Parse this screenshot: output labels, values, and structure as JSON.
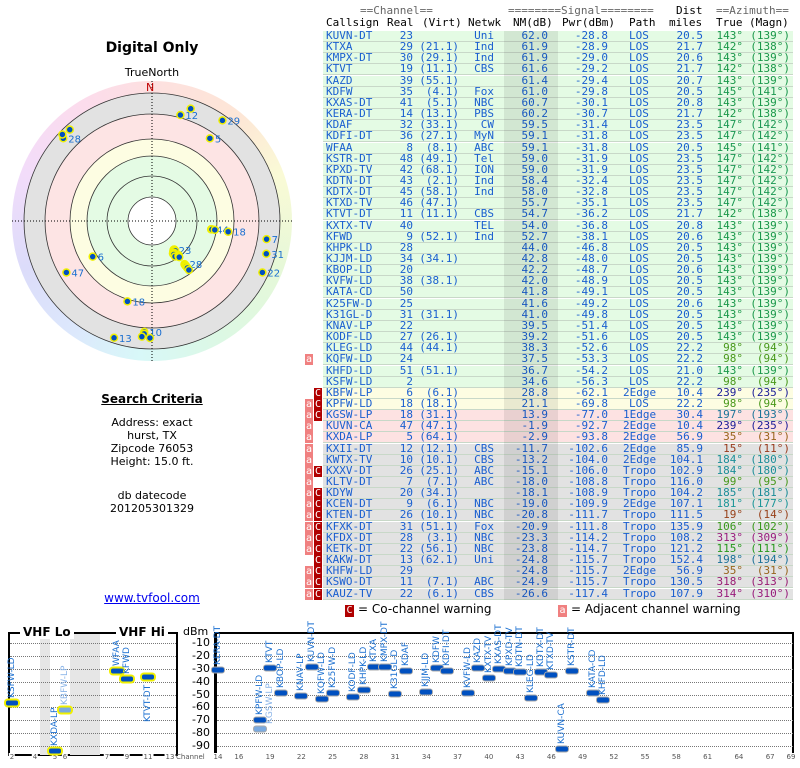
{
  "left": {
    "title": "Digital Only",
    "true_north": "TrueNorth",
    "north": "N",
    "criteria_title": "Search Criteria",
    "address": "Address: exact",
    "city": "hurst, TX",
    "zipcode": "Zipcode 76053",
    "height": "Height: 15.0 ft.",
    "db_label": "db datecode",
    "db_value": "201205301329",
    "link": "www.tvfool.com"
  },
  "header": {
    "channel": "==Channel==",
    "signal": "========Signal========",
    "dist": "Dist",
    "azimuth": "==Azimuth==",
    "callsign": "Callsign",
    "real": "Real",
    "virt": "(Virt)",
    "netwk": "Netwk",
    "nm": "NM(dB)",
    "pwr": "Pwr(dBm)",
    "path": "Path",
    "miles": "miles",
    "true": "True",
    "magn": "(Magn)"
  },
  "colors": {
    "green_row": "#e4fbe4",
    "yellow_row": "#fdfde2",
    "red_row": "#fde2e2",
    "gray_row": "#e2e2e2",
    "text": "#1a5fd0",
    "adjacent": "#f08080",
    "cochannel": "#b00000"
  },
  "rows": [
    {
      "call": "KUVN-DT",
      "real": "23",
      "virt": "",
      "net": "Uni",
      "nm": "62.0",
      "pwr": "-28.8",
      "path": "LOS",
      "dist": "20.5",
      "az": "143°",
      "magn": "(139°)",
      "warn": "",
      "band": "g"
    },
    {
      "call": "KTXA",
      "real": "29",
      "virt": "(21.1)",
      "net": "Ind",
      "nm": "61.9",
      "pwr": "-28.9",
      "path": "LOS",
      "dist": "21.7",
      "az": "142°",
      "magn": "(138°)",
      "warn": "",
      "band": "g"
    },
    {
      "call": "KMPX-DT",
      "real": "30",
      "virt": "(29.1)",
      "net": "Ind",
      "nm": "61.9",
      "pwr": "-29.0",
      "path": "LOS",
      "dist": "20.6",
      "az": "143°",
      "magn": "(139°)",
      "warn": "",
      "band": "g"
    },
    {
      "call": "KTVT",
      "real": "19",
      "virt": "(11.1)",
      "net": "CBS",
      "nm": "61.6",
      "pwr": "-29.2",
      "path": "LOS",
      "dist": "21.7",
      "az": "142°",
      "magn": "(138°)",
      "warn": "",
      "band": "g"
    },
    {
      "call": "KAZD",
      "real": "39",
      "virt": "(55.1)",
      "net": "",
      "nm": "61.4",
      "pwr": "-29.4",
      "path": "LOS",
      "dist": "20.7",
      "az": "143°",
      "magn": "(139°)",
      "warn": "",
      "band": "g"
    },
    {
      "call": "KDFW",
      "real": "35",
      "virt": "(4.1)",
      "net": "Fox",
      "nm": "61.0",
      "pwr": "-29.8",
      "path": "LOS",
      "dist": "20.5",
      "az": "145°",
      "magn": "(141°)",
      "warn": "",
      "band": "g"
    },
    {
      "call": "KXAS-DT",
      "real": "41",
      "virt": "(5.1)",
      "net": "NBC",
      "nm": "60.7",
      "pwr": "-30.1",
      "path": "LOS",
      "dist": "20.8",
      "az": "143°",
      "magn": "(139°)",
      "warn": "",
      "band": "g"
    },
    {
      "call": "KERA-DT",
      "real": "14",
      "virt": "(13.1)",
      "net": "PBS",
      "nm": "60.2",
      "pwr": "-30.7",
      "path": "LOS",
      "dist": "21.7",
      "az": "142°",
      "magn": "(138°)",
      "warn": "",
      "band": "g"
    },
    {
      "call": "KDAF",
      "real": "32",
      "virt": "(33.1)",
      "net": "CW",
      "nm": "59.5",
      "pwr": "-31.4",
      "path": "LOS",
      "dist": "23.5",
      "az": "147°",
      "magn": "(142°)",
      "warn": "",
      "band": "g"
    },
    {
      "call": "KDFI-DT",
      "real": "36",
      "virt": "(27.1)",
      "net": "MyN",
      "nm": "59.1",
      "pwr": "-31.8",
      "path": "LOS",
      "dist": "23.5",
      "az": "147°",
      "magn": "(142°)",
      "warn": "",
      "band": "g"
    },
    {
      "call": "WFAA",
      "real": "8",
      "virt": "(8.1)",
      "net": "ABC",
      "nm": "59.1",
      "pwr": "-31.8",
      "path": "LOS",
      "dist": "20.5",
      "az": "145°",
      "magn": "(141°)",
      "warn": "",
      "band": "g"
    },
    {
      "call": "KSTR-DT",
      "real": "48",
      "virt": "(49.1)",
      "net": "Tel",
      "nm": "59.0",
      "pwr": "-31.9",
      "path": "LOS",
      "dist": "23.5",
      "az": "147°",
      "magn": "(142°)",
      "warn": "",
      "band": "g"
    },
    {
      "call": "KPXD-TV",
      "real": "42",
      "virt": "(68.1)",
      "net": "ION",
      "nm": "59.0",
      "pwr": "-31.9",
      "path": "LOS",
      "dist": "23.5",
      "az": "147°",
      "magn": "(142°)",
      "warn": "",
      "band": "g"
    },
    {
      "call": "KDTN-DT",
      "real": "43",
      "virt": "(2.1)",
      "net": "Ind",
      "nm": "58.4",
      "pwr": "-32.4",
      "path": "LOS",
      "dist": "23.5",
      "az": "147°",
      "magn": "(142°)",
      "warn": "",
      "band": "g"
    },
    {
      "call": "KDTX-DT",
      "real": "45",
      "virt": "(58.1)",
      "net": "Ind",
      "nm": "58.0",
      "pwr": "-32.8",
      "path": "LOS",
      "dist": "23.5",
      "az": "147°",
      "magn": "(142°)",
      "warn": "",
      "band": "g"
    },
    {
      "call": "KTXD-TV",
      "real": "46",
      "virt": "(47.1)",
      "net": "",
      "nm": "55.7",
      "pwr": "-35.1",
      "path": "LOS",
      "dist": "23.5",
      "az": "147°",
      "magn": "(142°)",
      "warn": "",
      "band": "g"
    },
    {
      "call": "KTVT-DT",
      "real": "11",
      "virt": "(11.1)",
      "net": "CBS",
      "nm": "54.7",
      "pwr": "-36.2",
      "path": "LOS",
      "dist": "21.7",
      "az": "142°",
      "magn": "(138°)",
      "warn": "",
      "band": "g"
    },
    {
      "call": "KXTX-TV",
      "real": "40",
      "virt": "",
      "net": "TEL",
      "nm": "54.0",
      "pwr": "-36.8",
      "path": "LOS",
      "dist": "20.8",
      "az": "143°",
      "magn": "(139°)",
      "warn": "",
      "band": "g"
    },
    {
      "call": "KFWD",
      "real": "9",
      "virt": "(52.1)",
      "net": "Ind",
      "nm": "52.7",
      "pwr": "-38.1",
      "path": "LOS",
      "dist": "20.6",
      "az": "143°",
      "magn": "(139°)",
      "warn": "",
      "band": "g"
    },
    {
      "call": "KHPK-LD",
      "real": "28",
      "virt": "",
      "net": "",
      "nm": "44.0",
      "pwr": "-46.8",
      "path": "LOS",
      "dist": "20.5",
      "az": "143°",
      "magn": "(139°)",
      "warn": "",
      "band": "g"
    },
    {
      "call": "KJJM-LD",
      "real": "34",
      "virt": "(34.1)",
      "net": "",
      "nm": "42.8",
      "pwr": "-48.0",
      "path": "LOS",
      "dist": "20.5",
      "az": "143°",
      "magn": "(139°)",
      "warn": "",
      "band": "g"
    },
    {
      "call": "KBOP-LD",
      "real": "20",
      "virt": "",
      "net": "",
      "nm": "42.2",
      "pwr": "-48.7",
      "path": "LOS",
      "dist": "20.6",
      "az": "143°",
      "magn": "(139°)",
      "warn": "",
      "band": "g"
    },
    {
      "call": "KVFW-LD",
      "real": "38",
      "virt": "(38.1)",
      "net": "",
      "nm": "42.0",
      "pwr": "-48.9",
      "path": "LOS",
      "dist": "20.5",
      "az": "143°",
      "magn": "(139°)",
      "warn": "",
      "band": "g"
    },
    {
      "call": "KATA-CD",
      "real": "50",
      "virt": "",
      "net": "",
      "nm": "41.8",
      "pwr": "-49.1",
      "path": "LOS",
      "dist": "20.5",
      "az": "143°",
      "magn": "(139°)",
      "warn": "",
      "band": "g"
    },
    {
      "call": "K25FW-D",
      "real": "25",
      "virt": "",
      "net": "",
      "nm": "41.6",
      "pwr": "-49.2",
      "path": "LOS",
      "dist": "20.6",
      "az": "143°",
      "magn": "(139°)",
      "warn": "",
      "band": "g"
    },
    {
      "call": "K31GL-D",
      "real": "31",
      "virt": "(31.1)",
      "net": "",
      "nm": "41.0",
      "pwr": "-49.8",
      "path": "LOS",
      "dist": "20.5",
      "az": "143°",
      "magn": "(139°)",
      "warn": "",
      "band": "g"
    },
    {
      "call": "KNAV-LP",
      "real": "22",
      "virt": "",
      "net": "",
      "nm": "39.5",
      "pwr": "-51.4",
      "path": "LOS",
      "dist": "20.5",
      "az": "143°",
      "magn": "(139°)",
      "warn": "",
      "band": "g"
    },
    {
      "call": "KODF-LD",
      "real": "27",
      "virt": "(26.1)",
      "net": "",
      "nm": "39.2",
      "pwr": "-51.6",
      "path": "LOS",
      "dist": "20.5",
      "az": "143°",
      "magn": "(139°)",
      "warn": "",
      "band": "g"
    },
    {
      "call": "KLEG-LD",
      "real": "44",
      "virt": "(44.1)",
      "net": "",
      "nm": "38.3",
      "pwr": "-52.6",
      "path": "LOS",
      "dist": "22.2",
      "az": "98°",
      "magn": "(94°)",
      "warn": "",
      "band": "g"
    },
    {
      "call": "KQFW-LD",
      "real": "24",
      "virt": "",
      "net": "",
      "nm": "37.5",
      "pwr": "-53.3",
      "path": "LOS",
      "dist": "22.2",
      "az": "98°",
      "magn": "(94°)",
      "warn": "a",
      "band": "g"
    },
    {
      "call": "KHFD-LD",
      "real": "51",
      "virt": "(51.1)",
      "net": "",
      "nm": "36.7",
      "pwr": "-54.2",
      "path": "LOS",
      "dist": "21.0",
      "az": "143°",
      "magn": "(139°)",
      "warn": "",
      "band": "g"
    },
    {
      "call": "KSFW-LD",
      "real": "2",
      "virt": "",
      "net": "",
      "nm": "34.6",
      "pwr": "-56.3",
      "path": "LOS",
      "dist": "22.2",
      "az": "98°",
      "magn": "(94°)",
      "warn": "",
      "band": "g"
    },
    {
      "call": "KBFW-LP",
      "real": "6",
      "virt": "(6.1)",
      "net": "",
      "nm": "28.8",
      "pwr": "-62.1",
      "path": "2Edge",
      "dist": "10.4",
      "az": "239°",
      "magn": "(235°)",
      "warn": "C",
      "band": "y"
    },
    {
      "call": "KPFW-LD",
      "real": "18",
      "virt": "(18.1)",
      "net": "",
      "nm": "21.1",
      "pwr": "-69.8",
      "path": "LOS",
      "dist": "22.2",
      "az": "98°",
      "magn": "(94°)",
      "warn": "aC",
      "band": "y"
    },
    {
      "call": "KGSW-LP",
      "real": "18",
      "virt": "(31.1)",
      "net": "",
      "nm": "13.9",
      "pwr": "-77.0",
      "path": "1Edge",
      "dist": "30.4",
      "az": "197°",
      "magn": "(193°)",
      "warn": "aC",
      "band": "r"
    },
    {
      "call": "KUVN-CA",
      "real": "47",
      "virt": "(47.1)",
      "net": "",
      "nm": "-1.9",
      "pwr": "-92.7",
      "path": "2Edge",
      "dist": "10.4",
      "az": "239°",
      "magn": "(235°)",
      "warn": "a",
      "band": "r"
    },
    {
      "call": "KXDA-LP",
      "real": "5",
      "virt": "(64.1)",
      "net": "",
      "nm": "-2.9",
      "pwr": "-93.8",
      "path": "2Edge",
      "dist": "56.9",
      "az": "35°",
      "magn": "(31°)",
      "warn": "a",
      "band": "r"
    },
    {
      "call": "KXII-DT",
      "real": "12",
      "virt": "(12.1)",
      "net": "CBS",
      "nm": "-11.7",
      "pwr": "-102.6",
      "path": "2Edge",
      "dist": "85.9",
      "az": "15°",
      "magn": "(11°)",
      "warn": "a",
      "band": "x"
    },
    {
      "call": "KWTX-TV",
      "real": "10",
      "virt": "(10.1)",
      "net": "CBS",
      "nm": "-13.2",
      "pwr": "-104.0",
      "path": "2Edge",
      "dist": "104.1",
      "az": "184°",
      "magn": "(180°)",
      "warn": "a",
      "band": "x"
    },
    {
      "call": "KXXV-DT",
      "real": "26",
      "virt": "(25.1)",
      "net": "ABC",
      "nm": "-15.1",
      "pwr": "-106.0",
      "path": "Tropo",
      "dist": "102.9",
      "az": "184°",
      "magn": "(180°)",
      "warn": "aC",
      "band": "x"
    },
    {
      "call": "KLTV-DT",
      "real": "7",
      "virt": "(7.1)",
      "net": "ABC",
      "nm": "-18.0",
      "pwr": "-108.8",
      "path": "Tropo",
      "dist": "116.0",
      "az": "99°",
      "magn": "(95°)",
      "warn": "a",
      "band": "x"
    },
    {
      "call": "KDYW",
      "real": "20",
      "virt": "(34.1)",
      "net": "",
      "nm": "-18.1",
      "pwr": "-108.9",
      "path": "Tropo",
      "dist": "104.2",
      "az": "185°",
      "magn": "(181°)",
      "warn": "aC",
      "band": "x"
    },
    {
      "call": "KCEN-DT",
      "real": "9",
      "virt": "(6.1)",
      "net": "NBC",
      "nm": "-19.0",
      "pwr": "-109.9",
      "path": "2Edge",
      "dist": "107.1",
      "az": "181°",
      "magn": "(177°)",
      "warn": "aC",
      "band": "x"
    },
    {
      "call": "KTEN-DT",
      "real": "26",
      "virt": "(10.1)",
      "net": "NBC",
      "nm": "-20.8",
      "pwr": "-111.7",
      "path": "Tropo",
      "dist": "111.5",
      "az": "19°",
      "magn": "(14°)",
      "warn": "aC",
      "band": "x"
    },
    {
      "call": "KFXK-DT",
      "real": "31",
      "virt": "(51.1)",
      "net": "Fox",
      "nm": "-20.9",
      "pwr": "-111.8",
      "path": "Tropo",
      "dist": "135.9",
      "az": "106°",
      "magn": "(102°)",
      "warn": "aC",
      "band": "x"
    },
    {
      "call": "KFDX-DT",
      "real": "28",
      "virt": "(3.1)",
      "net": "NBC",
      "nm": "-23.3",
      "pwr": "-114.2",
      "path": "Tropo",
      "dist": "108.2",
      "az": "313°",
      "magn": "(309°)",
      "warn": "aC",
      "band": "x"
    },
    {
      "call": "KETK-DT",
      "real": "22",
      "virt": "(56.1)",
      "net": "NBC",
      "nm": "-23.8",
      "pwr": "-114.7",
      "path": "Tropo",
      "dist": "121.2",
      "az": "115°",
      "magn": "(111°)",
      "warn": "aC",
      "band": "x"
    },
    {
      "call": "KAKW-DT",
      "real": "13",
      "virt": "(62.1)",
      "net": "Uni",
      "nm": "-24.8",
      "pwr": "-115.7",
      "path": "Tropo",
      "dist": "152.4",
      "az": "198°",
      "magn": "(194°)",
      "warn": "C",
      "band": "x"
    },
    {
      "call": "KHFW-LD",
      "real": "29",
      "virt": "",
      "net": "",
      "nm": "-24.8",
      "pwr": "-115.7",
      "path": "2Edge",
      "dist": "56.9",
      "az": "35°",
      "magn": "(31°)",
      "warn": "aC",
      "band": "x"
    },
    {
      "call": "KSWO-DT",
      "real": "11",
      "virt": "(7.1)",
      "net": "ABC",
      "nm": "-24.9",
      "pwr": "-115.7",
      "path": "Tropo",
      "dist": "130.5",
      "az": "318°",
      "magn": "(313°)",
      "warn": "aC",
      "band": "x"
    },
    {
      "call": "KAUZ-TV",
      "real": "22",
      "virt": "(6.1)",
      "net": "CBS",
      "nm": "-26.6",
      "pwr": "-117.4",
      "path": "Tropo",
      "dist": "107.9",
      "az": "314°",
      "magn": "(310°)",
      "warn": "aC",
      "band": "x"
    }
  ],
  "legend": {
    "c_glyph": "C",
    "c_text": "= Co-channel warning",
    "a_glyph": "a",
    "a_text": "= Adjacent channel warning"
  },
  "chart_data": {
    "type": "scatter",
    "title": "",
    "vhf_lo": "VHF Lo",
    "vhf_hi": "VHF Hi",
    "ylabel": "dBm",
    "xlabel": "Channel",
    "yticks": [
      "-10",
      "-20",
      "-30",
      "-40",
      "-50",
      "-60",
      "-70",
      "-80",
      "-90"
    ],
    "ylim": [
      -95,
      -5
    ],
    "vhf_ticks": [
      "2",
      "4",
      "5",
      "6",
      "7",
      "9",
      "11",
      "13"
    ],
    "uhf_ticks": [
      "14",
      "16",
      "19",
      "22",
      "25",
      "28",
      "31",
      "34",
      "37",
      "40",
      "43",
      "46",
      "49",
      "52",
      "55",
      "58",
      "61",
      "64",
      "67",
      "69"
    ],
    "faded": [
      "KBFW-LP",
      "KGSW-LP"
    ],
    "min_pwr": -100
  }
}
